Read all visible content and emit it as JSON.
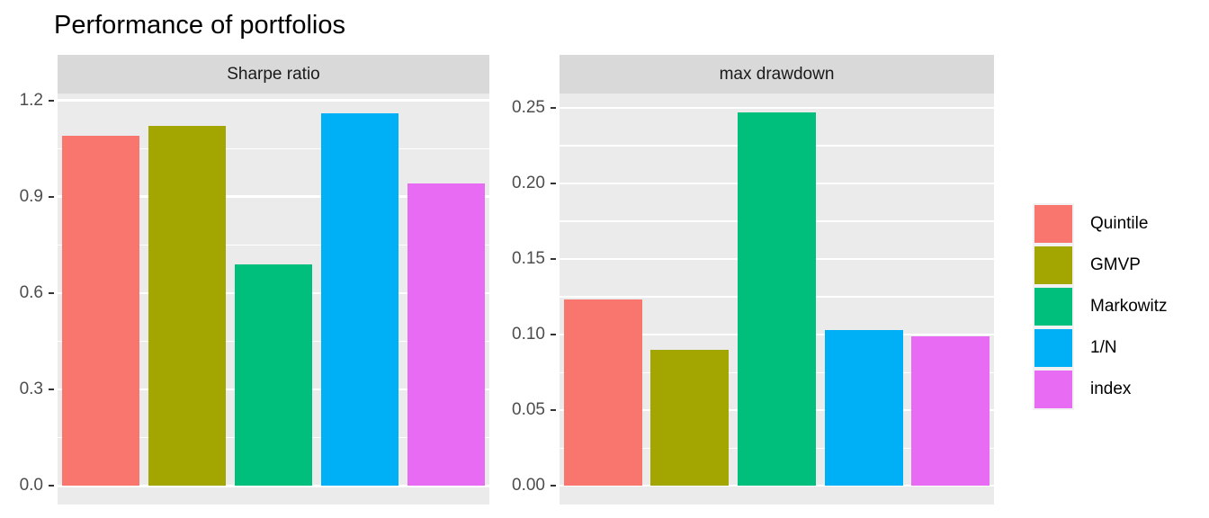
{
  "title": "Performance of portfolios",
  "chart_data": {
    "type": "bar",
    "title": "Performance of portfolios",
    "faceted": true,
    "grid": true,
    "legend_position": "right",
    "categories": [
      "Quintile",
      "GMVP",
      "Markowitz",
      "1/N",
      "index"
    ],
    "palette": [
      "#F8766D",
      "#A3A500",
      "#00BF7D",
      "#00B0F6",
      "#E76BF3"
    ],
    "facets": [
      {
        "label": "Sharpe ratio",
        "values": [
          1.09,
          1.12,
          0.69,
          1.16,
          0.94
        ],
        "ylim": [
          -0.058,
          1.221
        ],
        "yticks": [
          {
            "value": 0.0,
            "label": "0.0"
          },
          {
            "value": 0.3,
            "label": "0.3"
          },
          {
            "value": 0.6,
            "label": "0.6"
          },
          {
            "value": 0.9,
            "label": "0.9"
          },
          {
            "value": 1.2,
            "label": "1.2"
          }
        ],
        "minor_gridlines": [
          0.15,
          0.45,
          0.75,
          1.05
        ]
      },
      {
        "label": "max drawdown",
        "values": [
          0.123,
          0.09,
          0.247,
          0.103,
          0.099
        ],
        "ylim": [
          -0.0124,
          0.2594
        ],
        "yticks": [
          {
            "value": 0.0,
            "label": "0.00"
          },
          {
            "value": 0.05,
            "label": "0.05"
          },
          {
            "value": 0.1,
            "label": "0.10"
          },
          {
            "value": 0.15,
            "label": "0.15"
          },
          {
            "value": 0.2,
            "label": "0.20"
          },
          {
            "value": 0.25,
            "label": "0.25"
          }
        ],
        "minor_gridlines": [
          0.025,
          0.075,
          0.125,
          0.175,
          0.225
        ]
      }
    ],
    "style": {
      "panel_bg": "#EBEBEB",
      "strip_bg": "#D9D9D9",
      "grid_color": "#FFFFFF",
      "axis_text_color": "#4D4D4D",
      "strip_text_color": "#1A1A1A",
      "tick_mark_color": "#333333",
      "legend_key_bg": "#F2F2F2",
      "title_color": "#000000"
    }
  },
  "legend": {
    "items": [
      {
        "label": "Quintile",
        "color": "#F8766D"
      },
      {
        "label": "GMVP",
        "color": "#A3A500"
      },
      {
        "label": "Markowitz",
        "color": "#00BF7D"
      },
      {
        "label": "1/N",
        "color": "#00B0F6"
      },
      {
        "label": "index",
        "color": "#E76BF3"
      }
    ]
  }
}
